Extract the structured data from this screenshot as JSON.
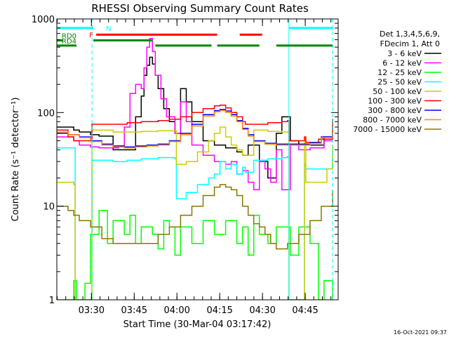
{
  "chart_data": {
    "type": "line",
    "title": "RHESSI Observing Summary Count Rates",
    "xlabel": "Start Time (30-Mar-04 03:17:42)",
    "ylabel": "Count Rate (s⁻¹ detector⁻¹)",
    "y_scale": "log",
    "ylim": [
      1,
      1000
    ],
    "xlim": [
      0,
      100
    ],
    "y_ticks": [
      {
        "v": 1,
        "label": "1"
      },
      {
        "v": 10,
        "label": "10"
      },
      {
        "v": 100,
        "label": "100"
      },
      {
        "v": 1000,
        "label": "1000"
      }
    ],
    "x_ticks": [
      {
        "v": 12.3,
        "label": "03:30"
      },
      {
        "v": 27.5,
        "label": "03:45"
      },
      {
        "v": 42.7,
        "label": "04:00"
      },
      {
        "v": 57.9,
        "label": "04:15"
      },
      {
        "v": 73.1,
        "label": "04:30"
      },
      {
        "v": 88.3,
        "label": "04:45"
      }
    ],
    "legend_header": [
      "Det 1,3,4,5,6,9,",
      "FDecim 1, Att 0"
    ],
    "series": [
      {
        "name": "3 - 6 keV",
        "color": "#000000",
        "x": [
          0,
          6,
          8,
          12,
          15,
          20,
          25,
          28,
          30,
          31,
          32,
          33,
          34,
          35,
          36,
          38,
          40,
          42,
          44,
          46,
          48,
          52,
          56,
          60,
          64,
          66,
          68,
          72,
          75,
          78,
          80,
          83,
          86,
          90,
          95,
          98
        ],
        "y": [
          70,
          65,
          62,
          58,
          56,
          40,
          40,
          90,
          150,
          250,
          320,
          390,
          330,
          250,
          180,
          110,
          80,
          60,
          180,
          130,
          80,
          50,
          45,
          42,
          38,
          35,
          45,
          30,
          20,
          60,
          90,
          50,
          45,
          45,
          55,
          75
        ]
      },
      {
        "name": "6 - 12 keV",
        "color": "#ff00ff",
        "x": [
          0,
          6,
          8,
          12,
          15,
          18,
          22,
          24,
          26,
          28,
          30,
          31,
          32,
          33,
          34,
          35,
          37,
          39,
          42,
          44,
          46,
          48,
          52,
          56,
          60,
          62,
          64,
          66,
          68,
          70,
          72,
          74,
          76,
          78,
          80,
          83,
          86,
          90,
          95,
          98
        ],
        "y": [
          55,
          50,
          45,
          43,
          42,
          42,
          44,
          70,
          160,
          200,
          180,
          300,
          500,
          620,
          450,
          250,
          140,
          90,
          60,
          130,
          80,
          45,
          35,
          30,
          28,
          30,
          22,
          24,
          18,
          15,
          30,
          25,
          18,
          40,
          15,
          45,
          40,
          42,
          50,
          70
        ]
      },
      {
        "name": "12 - 25 keV",
        "color": "#00ff00",
        "x": [
          0,
          5,
          6,
          7,
          10,
          12,
          15,
          18,
          20,
          24,
          26,
          28,
          30,
          34,
          36,
          38,
          40,
          42,
          44,
          48,
          52,
          56,
          60,
          64,
          66,
          68,
          70,
          72,
          75,
          78,
          80,
          83,
          86,
          90,
          93,
          95,
          98
        ],
        "y": [
          1,
          1,
          1.6,
          1,
          1.5,
          5,
          9,
          4,
          7,
          5,
          8,
          4,
          6,
          5,
          3.5,
          7,
          6,
          3,
          6,
          4,
          7,
          5,
          7,
          4,
          6,
          3,
          8,
          5,
          4,
          6,
          6,
          3,
          6,
          4,
          1,
          1.6,
          1
        ]
      },
      {
        "name": "25 - 50 keV",
        "color": "#00ffff",
        "x": [
          0,
          6,
          6.5,
          12,
          12.5,
          20,
          25,
          30,
          36,
          42,
          42.5,
          46,
          50,
          54,
          56,
          58,
          60,
          62,
          64,
          66,
          67,
          70,
          75,
          80,
          82,
          82.5,
          86,
          88,
          88.5,
          93,
          98
        ],
        "y": [
          42,
          42,
          1,
          1,
          31,
          30,
          31,
          32,
          33,
          32,
          12,
          14,
          17,
          20,
          22,
          30,
          25,
          28,
          22,
          26,
          23,
          31,
          32,
          33,
          34,
          1,
          1,
          28,
          25,
          25,
          36
        ]
      },
      {
        "name": "50 - 100 keV",
        "color": "#cccc00",
        "x": [
          0,
          6,
          6.5,
          12,
          12.5,
          20,
          25,
          30,
          36,
          40,
          42,
          42.5,
          46,
          50,
          54,
          56,
          58,
          60,
          62,
          64,
          66,
          70,
          75,
          80,
          82,
          82.5,
          86,
          88,
          88.5,
          93,
          96,
          98
        ],
        "y": [
          18,
          17,
          1,
          1,
          65,
          62,
          62,
          63,
          64,
          64,
          64,
          28,
          30,
          38,
          50,
          60,
          70,
          55,
          45,
          40,
          35,
          65,
          63,
          62,
          62,
          1,
          1,
          52,
          18,
          18,
          25,
          45
        ]
      },
      {
        "name": "100 - 300 keV",
        "color": "#ff0000",
        "x": [
          0,
          4,
          6,
          6.5,
          12,
          12.5,
          20,
          25,
          30,
          36,
          40,
          44,
          48,
          52,
          56,
          58,
          60,
          62,
          64,
          66,
          67,
          70,
          75,
          80,
          82,
          82.5,
          86,
          88,
          88.5,
          93,
          98
        ],
        "y": [
          65,
          55,
          50,
          50,
          50,
          75,
          75,
          78,
          80,
          82,
          85,
          90,
          100,
          110,
          118,
          120,
          112,
          100,
          90,
          80,
          75,
          75,
          78,
          80,
          82,
          50,
          50,
          55,
          48,
          52,
          85
        ]
      },
      {
        "name": "300 - 800 keV",
        "color": "#0000ff",
        "x": [
          0,
          4,
          8,
          12,
          16,
          20,
          24,
          28,
          32,
          36,
          40,
          44,
          48,
          52,
          56,
          58,
          60,
          62,
          64,
          66,
          68,
          70,
          74,
          78,
          82,
          86,
          90,
          94,
          98
        ],
        "y": [
          60,
          58,
          55,
          50,
          46,
          44,
          43,
          44,
          45,
          46,
          50,
          60,
          75,
          95,
          105,
          108,
          104,
          95,
          82,
          68,
          58,
          50,
          47,
          46,
          46,
          46,
          48,
          55,
          80
        ]
      },
      {
        "name": "800 - 7000 keV",
        "color": "#ff8800",
        "x": [
          0,
          4,
          8,
          12,
          16,
          20,
          24,
          28,
          32,
          36,
          40,
          44,
          48,
          52,
          56,
          58,
          60,
          62,
          64,
          66,
          68,
          70,
          74,
          78,
          82,
          86,
          90,
          94,
          98
        ],
        "y": [
          62,
          58,
          54,
          49,
          45,
          43,
          42,
          43,
          44,
          45,
          49,
          58,
          72,
          92,
          102,
          105,
          100,
          92,
          80,
          66,
          56,
          49,
          46,
          45,
          45,
          45,
          47,
          54,
          78
        ]
      },
      {
        "name": "7000 - 15000 keV",
        "color": "#887700",
        "x": [
          0,
          4,
          6,
          8,
          12,
          16,
          20,
          24,
          28,
          32,
          36,
          40,
          44,
          48,
          52,
          56,
          58,
          60,
          62,
          64,
          66,
          68,
          70,
          72,
          74,
          76,
          78,
          82,
          86,
          90,
          94,
          98
        ],
        "y": [
          10,
          9,
          8,
          7,
          6,
          4.5,
          4,
          4,
          4,
          4,
          5,
          6,
          8,
          10,
          13,
          16,
          17,
          16,
          15,
          13,
          10,
          8,
          6.5,
          6,
          5,
          4,
          3.5,
          4,
          5,
          7,
          10,
          15
        ]
      }
    ],
    "annotations": {
      "vertical_lines": [
        {
          "x": 12.5,
          "color": "#00ffff",
          "style": "dashed"
        },
        {
          "x": 82.5,
          "color": "#00ffff",
          "style": "solid"
        },
        {
          "x": 98,
          "color": "#00ffff",
          "style": "dashed"
        }
      ],
      "status_bars": [
        {
          "label": "N",
          "color": "#00ffff",
          "segments": [
            [
              0,
              13
            ],
            [
              82.5,
              98
            ]
          ],
          "value": 800
        },
        {
          "label": "F",
          "color": "#ff0000",
          "segments": [
            [
              14,
              57
            ],
            [
              65,
              73
            ]
          ],
          "value": 680
        },
        {
          "label": "RD0",
          "color": "#008800",
          "segments": [
            [
              0,
              2
            ],
            [
              13,
              34
            ]
          ],
          "value": 590
        },
        {
          "label": "RD4",
          "color": "#008800",
          "segments": [
            [
              0,
              7
            ],
            [
              35,
              55
            ],
            [
              57,
              72
            ],
            [
              78,
              98
            ]
          ],
          "value": 520
        }
      ]
    }
  },
  "footer": {
    "timestamp": "16-Oct-2021 09:37"
  }
}
